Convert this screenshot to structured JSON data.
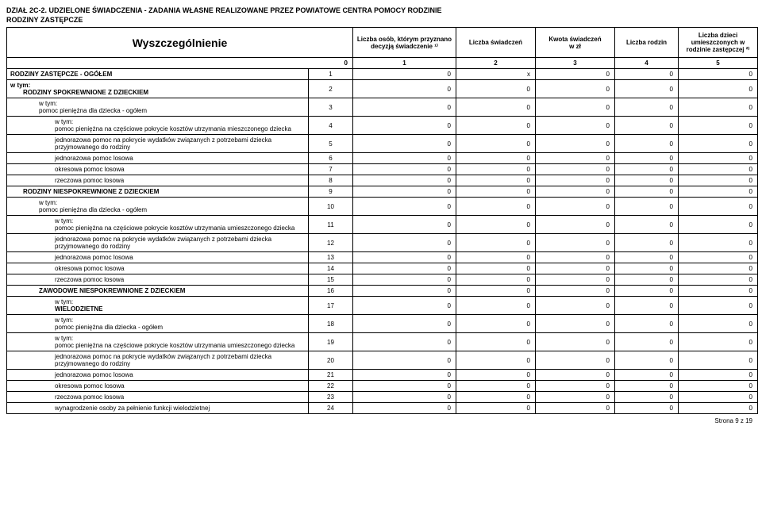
{
  "titles": {
    "main": "DZIAŁ 2C-2. UDZIELONE ŚWIADCZENIA - ZADANIA WŁASNE REALIZOWANE PRZEZ POWIATOWE CENTRA POMOCY RODZINIE",
    "sub": "RODZINY ZASTĘPCZE"
  },
  "headers": {
    "wysz": "Wyszczególnienie",
    "col1": "Liczba osób, którym przyznano decyzją świadczenie ¹⁾",
    "col2": "Liczba świadczeń",
    "col3_a": "Kwota świadczeń",
    "col3_b": "w zł",
    "col4": "Liczba rodzin",
    "col5": "Liczba dzieci umieszczonych w rodzinie zastępczej ²⁾",
    "idx0": "0",
    "idx1": "1",
    "idx2": "2",
    "idx3": "3",
    "idx4": "4",
    "idx5": "5"
  },
  "rows": [
    {
      "label": "RODZINY ZASTĘPCZE - OGÓŁEM",
      "idx": "1",
      "v": [
        "0",
        "x",
        "0",
        "0",
        "0"
      ],
      "bold": true,
      "indent": 0
    },
    {
      "label": "w tym:",
      "idx": "",
      "v": [
        "",
        "",
        "",
        "",
        ""
      ],
      "bold": true,
      "indent": 0,
      "noBorderBottom": true,
      "spanNext": true
    },
    {
      "label": "RODZINY SPOKREWNIONE Z DZIECKIEM",
      "idx": "2",
      "v": [
        "0",
        "0",
        "0",
        "0",
        "0"
      ],
      "bold": true,
      "indent": 1
    },
    {
      "label": "w tym:\npomoc pieniężna dla dziecka - ogółem",
      "idx": "3",
      "v": [
        "0",
        "0",
        "0",
        "0",
        "0"
      ],
      "bold": false,
      "indent": 2
    },
    {
      "label": "w tym:\npomoc pieniężna na częściowe pokrycie kosztów utrzymania mieszczonego dziecka",
      "idx": "4",
      "v": [
        "0",
        "0",
        "0",
        "0",
        "0"
      ],
      "bold": false,
      "indent": 3
    },
    {
      "label": "jednorazowa pomoc na pokrycie wydatków związanych z potrzebami dziecka przyjmowanego do rodziny",
      "idx": "5",
      "v": [
        "0",
        "0",
        "0",
        "0",
        "0"
      ],
      "bold": false,
      "indent": 3
    },
    {
      "label": "jednorazowa pomoc losowa",
      "idx": "6",
      "v": [
        "0",
        "0",
        "0",
        "0",
        "0"
      ],
      "bold": false,
      "indent": 3
    },
    {
      "label": "okresowa pomoc losowa",
      "idx": "7",
      "v": [
        "0",
        "0",
        "0",
        "0",
        "0"
      ],
      "bold": false,
      "indent": 3
    },
    {
      "label": "rzeczowa pomoc losowa",
      "idx": "8",
      "v": [
        "0",
        "0",
        "0",
        "0",
        "0"
      ],
      "bold": false,
      "indent": 3
    },
    {
      "label": "RODZINY NIESPOKREWNIONE Z DZIECKIEM",
      "idx": "9",
      "v": [
        "0",
        "0",
        "0",
        "0",
        "0"
      ],
      "bold": true,
      "indent": 1
    },
    {
      "label": "w tym:\npomoc pieniężna dla dziecka - ogółem",
      "idx": "10",
      "v": [
        "0",
        "0",
        "0",
        "0",
        "0"
      ],
      "bold": false,
      "indent": 2
    },
    {
      "label": "w tym:\npomoc pieniężna na częściowe pokrycie kosztów utrzymania  umieszczonego dziecka",
      "idx": "11",
      "v": [
        "0",
        "0",
        "0",
        "0",
        "0"
      ],
      "bold": false,
      "indent": 3
    },
    {
      "label": "jednorazowa pomoc na pokrycie wydatków związanych z potrzebami dziecka przyjmowanego do rodziny",
      "idx": "12",
      "v": [
        "0",
        "0",
        "0",
        "0",
        "0"
      ],
      "bold": false,
      "indent": 3
    },
    {
      "label": "jednorazowa pomoc losowa",
      "idx": "13",
      "v": [
        "0",
        "0",
        "0",
        "0",
        "0"
      ],
      "bold": false,
      "indent": 3
    },
    {
      "label": "okresowa pomoc losowa",
      "idx": "14",
      "v": [
        "0",
        "0",
        "0",
        "0",
        "0"
      ],
      "bold": false,
      "indent": 3
    },
    {
      "label": "rzeczowa pomoc losowa",
      "idx": "15",
      "v": [
        "0",
        "0",
        "0",
        "0",
        "0"
      ],
      "bold": false,
      "indent": 3
    },
    {
      "label": "ZAWODOWE NIESPOKREWNIONE Z DZIECKIEM",
      "idx": "16",
      "v": [
        "0",
        "0",
        "0",
        "0",
        "0"
      ],
      "bold": true,
      "indent": 2
    },
    {
      "label": "w tym:\nWIELODZIETNE",
      "idx": "17",
      "v": [
        "0",
        "0",
        "0",
        "0",
        "0"
      ],
      "bold": true,
      "indent": 3
    },
    {
      "label": "w tym:\npomoc pieniężna dla dziecka - ogółem",
      "idx": "18",
      "v": [
        "0",
        "0",
        "0",
        "0",
        "0"
      ],
      "bold": false,
      "indent": 3
    },
    {
      "label": "w tym:\npomoc pieniężna na częściowe pokrycie kosztów utrzymania umieszczonego dziecka",
      "idx": "19",
      "v": [
        "0",
        "0",
        "0",
        "0",
        "0"
      ],
      "bold": false,
      "indent": 3
    },
    {
      "label": "jednorazowa pomoc na pokrycie wydatków związanych z potrzebami dziecka przyjmowanego do rodziny",
      "idx": "20",
      "v": [
        "0",
        "0",
        "0",
        "0",
        "0"
      ],
      "bold": false,
      "indent": 3
    },
    {
      "label": "jednorazowa pomoc losowa",
      "idx": "21",
      "v": [
        "0",
        "0",
        "0",
        "0",
        "0"
      ],
      "bold": false,
      "indent": 3
    },
    {
      "label": "okresowa pomoc losowa",
      "idx": "22",
      "v": [
        "0",
        "0",
        "0",
        "0",
        "0"
      ],
      "bold": false,
      "indent": 3
    },
    {
      "label": "rzeczowa pomoc losowa",
      "idx": "23",
      "v": [
        "0",
        "0",
        "0",
        "0",
        "0"
      ],
      "bold": false,
      "indent": 3
    },
    {
      "label": "wynagrodzenie osoby za pełnienie funkcji wielodzietnej",
      "idx": "24",
      "v": [
        "0",
        "0",
        "0",
        "0",
        "0"
      ],
      "bold": false,
      "indent": 3
    }
  ],
  "footer": "Strona 9 z 19"
}
